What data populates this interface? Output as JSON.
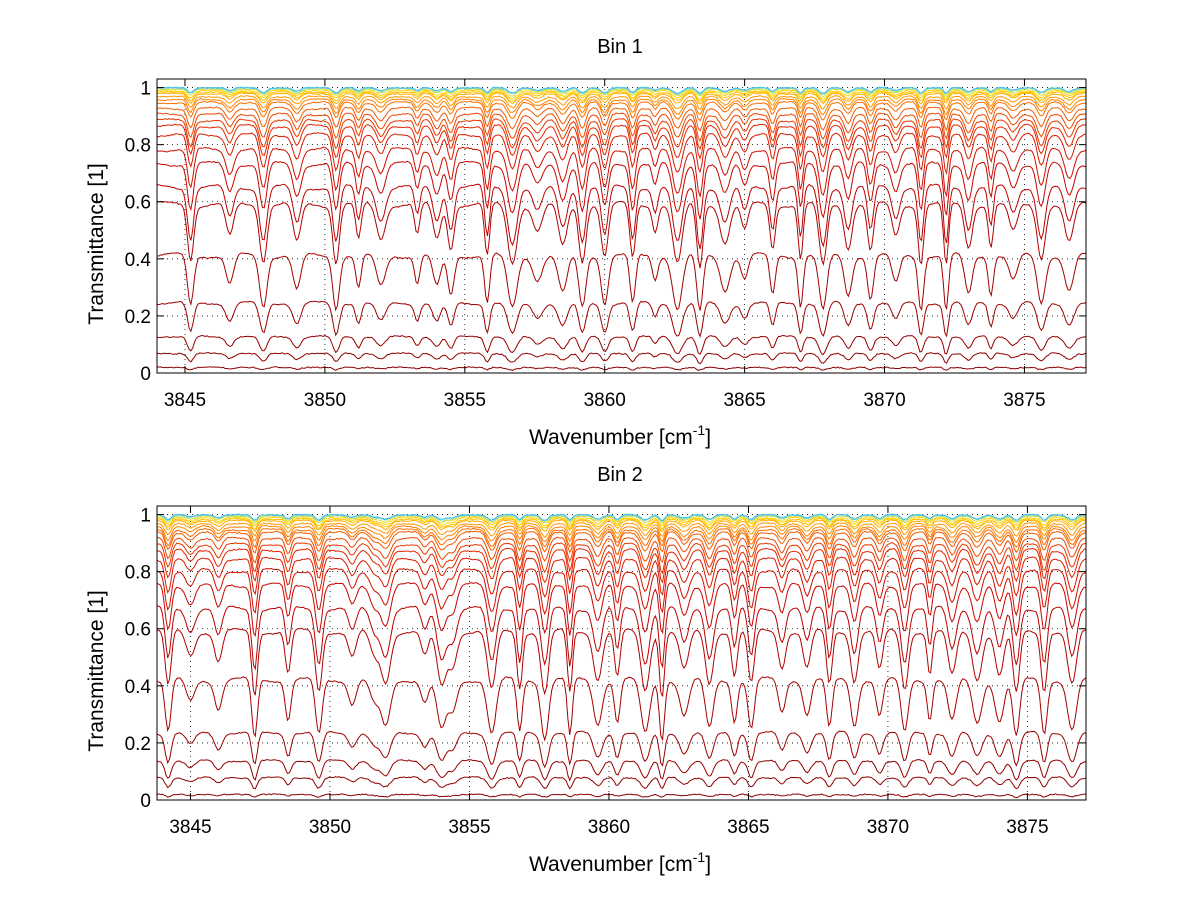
{
  "chart_data": [
    {
      "type": "line",
      "title": "Bin 1",
      "xlabel": "Wavenumber [cm",
      "xlabel_sup": "-1",
      "xlabel_end": "]",
      "ylabel": "Transmittance [1]",
      "xlim": [
        3844,
        3877.2
      ],
      "ylim": [
        0,
        1.03
      ],
      "xticks": [
        3845,
        3850,
        3855,
        3860,
        3865,
        3870,
        3875
      ],
      "yticks": [
        0,
        0.2,
        0.4,
        0.6,
        0.8,
        1
      ],
      "ytick_labels": [
        "0",
        "0.2",
        "0.4",
        "0.6",
        "0.8",
        "1"
      ],
      "grid": true,
      "grid_style": "dotted",
      "series_count": 24,
      "baseline_levels": [
        0.02,
        0.07,
        0.13,
        0.25,
        0.42,
        0.6,
        0.66,
        0.74,
        0.79,
        0.84,
        0.87,
        0.89,
        0.91,
        0.93,
        0.95,
        0.96,
        0.97,
        0.98,
        0.985,
        0.99,
        0.995,
        0.998,
        1.0,
        1.0
      ],
      "absorption_lines_cm1": [
        3845.2,
        3846.6,
        3847.8,
        3849.0,
        3850.4,
        3851.2,
        3852.0,
        3853.3,
        3854.0,
        3854.5,
        3855.8,
        3856.7,
        3857.6,
        3858.5,
        3859.2,
        3860.0,
        3861.0,
        3861.8,
        3862.6,
        3863.4,
        3864.3,
        3865.0,
        3866.0,
        3867.0,
        3867.8,
        3868.7,
        3869.5,
        3870.4,
        3871.3,
        3872.2,
        3873.0,
        3873.8,
        3874.6,
        3875.6,
        3876.6
      ],
      "color_scale": [
        "#8b0000",
        "#c00000",
        "#e02000",
        "#f05000",
        "#ff8000",
        "#ffb000",
        "#ffd800",
        "#a0e0a0",
        "#40c0ff"
      ]
    },
    {
      "type": "line",
      "title": "Bin 2",
      "xlabel": "Wavenumber [cm",
      "xlabel_sup": "-1",
      "xlabel_end": "]",
      "ylabel": "Transmittance [1]",
      "xlim": [
        3843.8,
        3877.1
      ],
      "ylim": [
        0,
        1.03
      ],
      "xticks": [
        3845,
        3850,
        3855,
        3860,
        3865,
        3870,
        3875
      ],
      "yticks": [
        0,
        0.2,
        0.4,
        0.6,
        0.8,
        1
      ],
      "ytick_labels": [
        "0",
        "0.2",
        "0.4",
        "0.6",
        "0.8",
        "1"
      ],
      "grid": true,
      "grid_style": "dotted",
      "series_count": 24,
      "baseline_levels": [
        0.02,
        0.08,
        0.14,
        0.24,
        0.43,
        0.6,
        0.68,
        0.76,
        0.81,
        0.85,
        0.88,
        0.9,
        0.92,
        0.94,
        0.95,
        0.96,
        0.97,
        0.98,
        0.985,
        0.99,
        0.995,
        0.998,
        1.0,
        1.0
      ],
      "absorption_lines_cm1": [
        3844.2,
        3845.0,
        3846.0,
        3847.3,
        3848.5,
        3849.6,
        3850.8,
        3851.6,
        3852.0,
        3853.4,
        3854.0,
        3854.4,
        3855.8,
        3856.8,
        3857.7,
        3858.6,
        3859.6,
        3860.3,
        3861.3,
        3861.9,
        3862.7,
        3863.6,
        3864.5,
        3865.1,
        3866.2,
        3867.1,
        3867.9,
        3868.8,
        3869.7,
        3870.6,
        3871.5,
        3872.3,
        3873.2,
        3874.0,
        3874.6,
        3875.6,
        3876.6
      ],
      "color_scale": [
        "#8b0000",
        "#c00000",
        "#e02000",
        "#f05000",
        "#ff8000",
        "#ffb000",
        "#ffd800",
        "#a0e0a0",
        "#40c0ff"
      ]
    }
  ]
}
